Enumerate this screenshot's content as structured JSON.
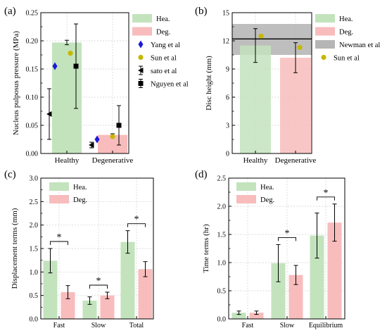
{
  "colors": {
    "hea": "#c3e3bd",
    "deg": "#f8bcbc",
    "newman": "#a8a8a8",
    "yang": "#1a1adb",
    "sun": "#c4b800",
    "black": "#000000"
  },
  "chart_data": [
    {
      "panel_label": "(a)",
      "type": "bar",
      "categories": [
        "Healthy",
        "Degenerative"
      ],
      "ylabel": "Nucleus pulposus pressure (MPa)",
      "xlabel": "",
      "ylim": [
        0,
        0.25
      ],
      "yticks": [
        "0.00",
        "0.05",
        "0.10",
        "0.15",
        "0.20",
        "0.25"
      ],
      "grid": true,
      "legend_position": "right",
      "series": [
        {
          "name": "Hea.",
          "type": "bar",
          "values": [
            0.197,
            null
          ],
          "errors": [
            0.004,
            null
          ]
        },
        {
          "name": "Deg.",
          "type": "bar",
          "values": [
            null,
            0.033
          ],
          "errors": [
            null,
            0.002
          ]
        },
        {
          "name": "Yang et al",
          "type": "point",
          "marker": "diamond",
          "values": [
            0.155,
            0.025
          ]
        },
        {
          "name": "Sun et al",
          "type": "point",
          "marker": "circle",
          "values": [
            0.178,
            0.03
          ]
        },
        {
          "name": "sato et al",
          "type": "point",
          "marker": "triangle-left",
          "values": [
            0.07,
            0.015
          ],
          "err_low": [
            0.045,
            0.005
          ],
          "err_high": [
            0.045,
            0.005
          ]
        },
        {
          "name": "Nguyen et al",
          "type": "point",
          "marker": "square",
          "values": [
            0.155,
            0.05
          ],
          "err_low": [
            0.075,
            0.035
          ],
          "err_high": [
            0.075,
            0.035
          ]
        }
      ]
    },
    {
      "panel_label": "(b)",
      "type": "bar",
      "categories": [
        "Healthy",
        "Degenerative"
      ],
      "ylabel": "Disc height (mm)",
      "xlabel": "",
      "ylim": [
        0,
        15
      ],
      "yticks": [
        "0",
        "3",
        "6",
        "9",
        "12",
        "15"
      ],
      "grid": true,
      "legend_position": "right",
      "series": [
        {
          "name": "Hea.",
          "type": "bar",
          "values": [
            11.5,
            null
          ],
          "errors": [
            1.8,
            null
          ]
        },
        {
          "name": "Deg.",
          "type": "bar",
          "values": [
            null,
            10.2
          ],
          "errors": [
            null,
            1.6
          ]
        },
        {
          "name": "Newman et al",
          "type": "band",
          "low": 10.5,
          "high": 13.8,
          "line": 12.2
        },
        {
          "name": "Sun et al",
          "type": "point",
          "marker": "circle",
          "values": [
            12.5,
            11.3
          ]
        }
      ]
    },
    {
      "panel_label": "(c)",
      "type": "bar",
      "categories": [
        "Fast",
        "Slow",
        "Total"
      ],
      "ylabel": "Displacement terms (mm)",
      "xlabel": "",
      "ylim": [
        0,
        3.0
      ],
      "yticks": [
        "0.0",
        "0.5",
        "1.0",
        "1.5",
        "2.0",
        "2.5",
        "3.0"
      ],
      "grid": true,
      "legend_position": "top-left",
      "significance": [
        "*",
        "*",
        "*"
      ],
      "series": [
        {
          "name": "Hea.",
          "values": [
            1.24,
            0.39,
            1.64
          ],
          "errors": [
            0.26,
            0.08,
            0.24
          ]
        },
        {
          "name": "Deg.",
          "values": [
            0.57,
            0.5,
            1.06
          ],
          "errors": [
            0.14,
            0.07,
            0.16
          ]
        }
      ]
    },
    {
      "panel_label": "(d)",
      "type": "bar",
      "categories": [
        "Fast",
        "Slow",
        "Equilibrium"
      ],
      "ylabel": "Time terms (hr)",
      "xlabel": "",
      "ylim": [
        0,
        2.5
      ],
      "yticks": [
        "0.0",
        "0.5",
        "1.0",
        "1.5",
        "2.0",
        "2.5"
      ],
      "grid": true,
      "legend_position": "top-left",
      "significance": [
        "",
        "*",
        "*"
      ],
      "series": [
        {
          "name": "Hea.",
          "values": [
            0.11,
            0.99,
            1.48
          ],
          "errors": [
            0.03,
            0.33,
            0.4
          ]
        },
        {
          "name": "Deg.",
          "values": [
            0.11,
            0.78,
            1.71
          ],
          "errors": [
            0.03,
            0.17,
            0.33
          ]
        }
      ]
    }
  ]
}
